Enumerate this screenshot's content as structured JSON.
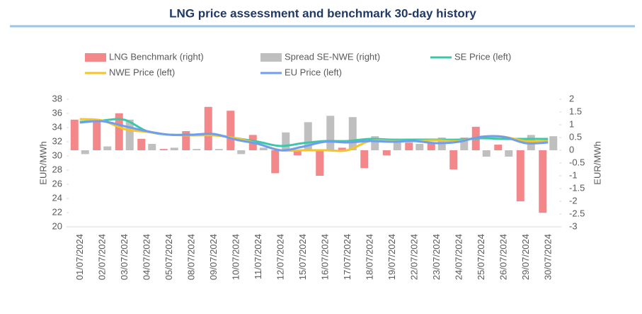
{
  "chart_data": {
    "type": "bar-line",
    "title": "LNG price assessment and benchmark 30-day history",
    "ylabel": "EUR/MWh",
    "y2label": "EUR/MWh",
    "categories": [
      "01/07/2024",
      "02/07/2024",
      "03/07/2024",
      "04/07/2024",
      "05/07/2024",
      "08/07/2024",
      "09/07/2024",
      "10/07/2024",
      "11/07/2024",
      "12/07/2024",
      "15/07/2024",
      "16/07/2024",
      "17/07/2024",
      "18/07/2024",
      "19/07/2024",
      "22/07/2024",
      "23/07/2024",
      "24/07/2024",
      "25/07/2024",
      "26/07/2024",
      "29/07/2024",
      "30/07/2024"
    ],
    "ylim": [
      20,
      38
    ],
    "yticks": [
      20,
      22,
      24,
      26,
      28,
      30,
      32,
      34,
      36,
      38
    ],
    "y2lim": [
      -3,
      2
    ],
    "y2ticks": [
      -3,
      -2.5,
      -2,
      -1.5,
      -1,
      -0.5,
      0,
      0.5,
      1,
      1.5,
      2
    ],
    "series": [
      {
        "name": "LNG Benchmark (right)",
        "kind": "bar",
        "axis": "y2",
        "color": "#f4878a",
        "values": [
          1.2,
          1.15,
          1.45,
          0.45,
          0.05,
          0.75,
          1.7,
          1.55,
          0.6,
          -0.9,
          -0.2,
          -1.0,
          0.1,
          -0.7,
          -0.2,
          0.3,
          0.3,
          -0.75,
          0.92,
          0.22,
          -2.0,
          -2.45
        ]
      },
      {
        "name": "Spread SE-NWE (right)",
        "kind": "bar",
        "axis": "y2",
        "color": "#bfbfbf",
        "values": [
          -0.15,
          0.15,
          1.2,
          0.25,
          0.1,
          0.05,
          0.05,
          -0.15,
          0.1,
          0.7,
          1.1,
          1.35,
          1.3,
          0.55,
          0.35,
          0.25,
          0.5,
          0.5,
          -0.25,
          -0.25,
          0.6,
          0.55
        ]
      },
      {
        "name": "SE Price (left)",
        "kind": "line",
        "color": "#3cc8a8",
        "values": [
          34.8,
          35.0,
          35.1,
          33.5,
          33.0,
          33.0,
          33.0,
          32.5,
          32.0,
          31.4,
          31.8,
          32.1,
          32.1,
          32.4,
          32.3,
          32.3,
          32.3,
          32.3,
          32.5,
          32.4,
          32.4,
          32.4
        ]
      },
      {
        "name": "NWE Price (left)",
        "kind": "line",
        "color": "#f7c325",
        "values": [
          35.2,
          35.0,
          33.8,
          33.4,
          33.0,
          32.9,
          32.9,
          32.5,
          31.7,
          30.8,
          30.8,
          30.8,
          30.8,
          32.1,
          32.1,
          32.1,
          32.2,
          32.1,
          32.7,
          32.7,
          32.1,
          32.1
        ]
      },
      {
        "name": "EU Price (left)",
        "kind": "line",
        "color": "#6f9ef0",
        "values": [
          34.7,
          34.9,
          34.2,
          33.5,
          33.0,
          33.0,
          33.1,
          32.3,
          31.7,
          30.8,
          31.3,
          32.0,
          31.9,
          32.1,
          32.0,
          32.1,
          31.8,
          32.0,
          32.7,
          32.7,
          31.8,
          31.9
        ]
      }
    ]
  }
}
